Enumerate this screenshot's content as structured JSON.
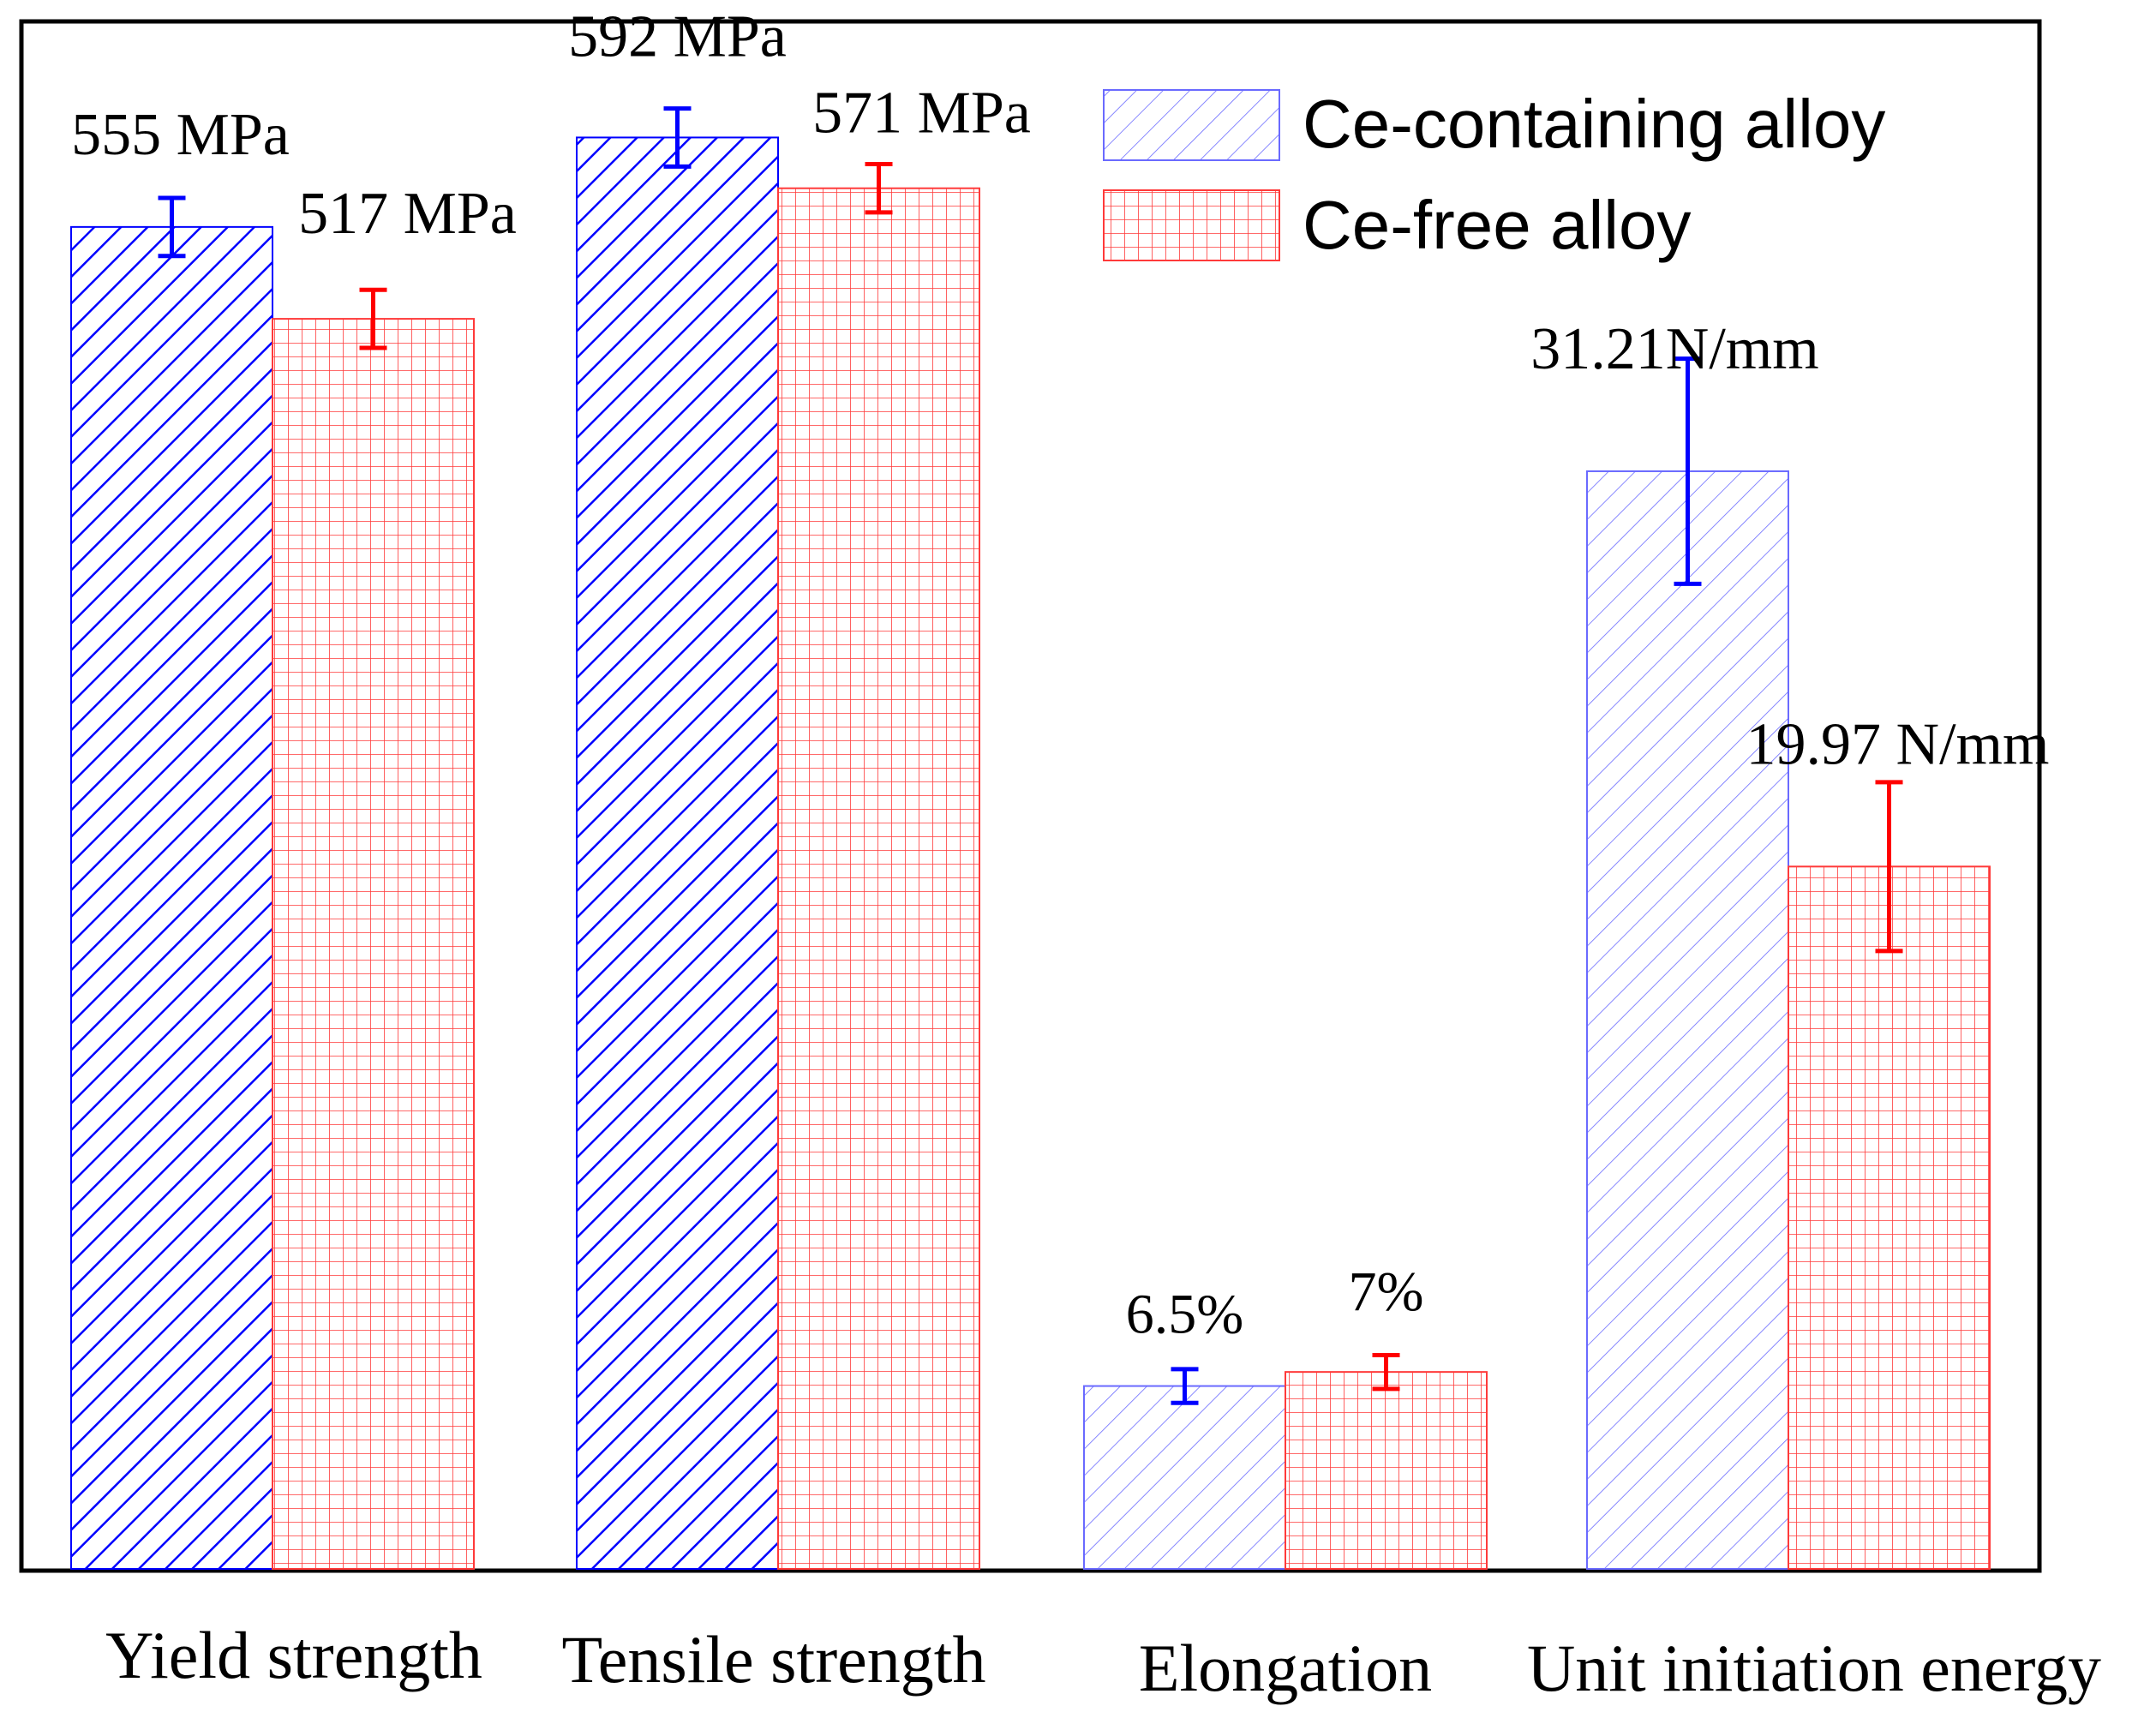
{
  "chart_data": {
    "type": "bar",
    "title": "",
    "xlabel": "",
    "ylabel": "",
    "grid": false,
    "legend_position": "top-right",
    "categories": [
      "Yield strength",
      "Tensile strength",
      "Elongation",
      "Unit initiation energy"
    ],
    "series": [
      {
        "name": "Ce-containing alloy",
        "color": "#0000ff",
        "pattern": "diagonal-hatch",
        "values": [
          555,
          592,
          6.5,
          31.21
        ],
        "errors": [
          12,
          12,
          0.6,
          3.2
        ],
        "labels": [
          "555 MPa",
          "592 MPa",
          "6.5%",
          "31.21N/mm"
        ]
      },
      {
        "name": "Ce-free alloy",
        "color": "#ff0000",
        "pattern": "grid-hatch",
        "values": [
          517,
          571,
          7,
          19.97
        ],
        "errors": [
          12,
          10,
          0.6,
          2.4
        ],
        "labels": [
          "517 MPa",
          "571 MPa",
          "7%",
          "19.97 N/mm"
        ]
      }
    ],
    "group_scales": [
      {
        "units": "MPa",
        "ylim": [
          0,
          640
        ]
      },
      {
        "units": "MPa",
        "ylim": [
          0,
          640
        ]
      },
      {
        "units": "%",
        "ylim": [
          0,
          55
        ]
      },
      {
        "units": "N/mm",
        "ylim": [
          0,
          44
        ]
      }
    ]
  }
}
